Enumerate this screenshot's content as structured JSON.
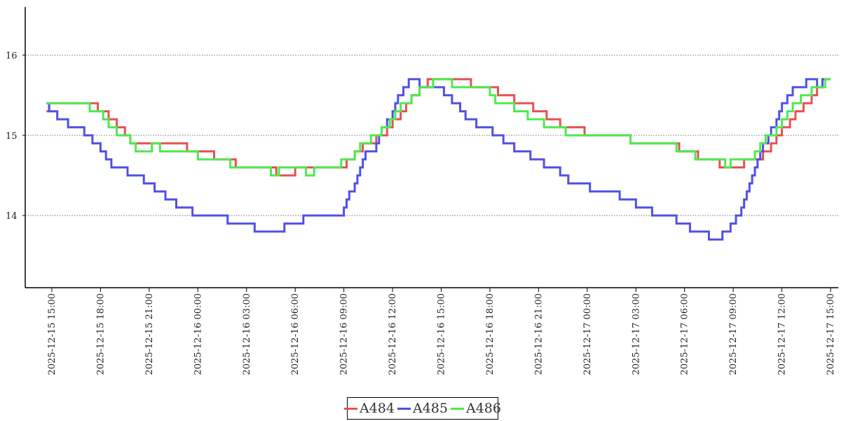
{
  "chart_data": {
    "type": "line",
    "step": true,
    "title": "",
    "xlabel": "",
    "ylabel": "",
    "ylim": [
      13.1,
      16.6
    ],
    "grid": "horizontal-dotted",
    "legend_position": "bottom-center",
    "y_ticks": [
      14,
      15,
      16
    ],
    "y_tick_labels": [
      "14",
      "15",
      "16"
    ],
    "x_ticks": [
      "2025-12-15 15:00",
      "2025-12-15 18:00",
      "2025-12-15 21:00",
      "2025-12-16 00:00",
      "2025-12-16 03:00",
      "2025-12-16 06:00",
      "2025-12-16 09:00",
      "2025-12-16 12:00",
      "2025-12-16 15:00",
      "2025-12-16 18:00",
      "2025-12-16 21:00",
      "2025-12-17 00:00",
      "2025-12-17 03:00",
      "2025-12-17 06:00",
      "2025-12-17 09:00",
      "2025-12-17 12:00",
      "2025-12-17 15:00"
    ],
    "series": [
      {
        "name": "A484",
        "color": "#e85050",
        "points": [
          [
            "2025-12-15 14:40",
            15.3
          ],
          [
            "2025-12-15 14:50",
            15.4
          ],
          [
            "2025-12-15 17:50",
            15.3
          ],
          [
            "2025-12-15 18:30",
            15.2
          ],
          [
            "2025-12-15 19:00",
            15.1
          ],
          [
            "2025-12-15 19:30",
            15.0
          ],
          [
            "2025-12-15 19:50",
            14.9
          ],
          [
            "2025-12-15 23:20",
            14.8
          ],
          [
            "2025-12-16 01:00",
            14.7
          ],
          [
            "2025-12-16 02:20",
            14.6
          ],
          [
            "2025-12-16 04:50",
            14.5
          ],
          [
            "2025-12-16 06:00",
            14.6
          ],
          [
            "2025-12-16 09:10",
            14.7
          ],
          [
            "2025-12-16 09:40",
            14.8
          ],
          [
            "2025-12-16 10:10",
            14.9
          ],
          [
            "2025-12-16 11:00",
            15.0
          ],
          [
            "2025-12-16 11:40",
            15.1
          ],
          [
            "2025-12-16 12:00",
            15.2
          ],
          [
            "2025-12-16 12:30",
            15.3
          ],
          [
            "2025-12-16 12:50",
            15.4
          ],
          [
            "2025-12-16 13:10",
            15.5
          ],
          [
            "2025-12-16 13:40",
            15.6
          ],
          [
            "2025-12-16 14:10",
            15.7
          ],
          [
            "2025-12-16 16:50",
            15.6
          ],
          [
            "2025-12-16 18:30",
            15.5
          ],
          [
            "2025-12-16 19:30",
            15.4
          ],
          [
            "2025-12-16 20:40",
            15.3
          ],
          [
            "2025-12-16 21:30",
            15.2
          ],
          [
            "2025-12-16 22:20",
            15.1
          ],
          [
            "2025-12-16 23:50",
            15.0
          ],
          [
            "2025-12-17 02:40",
            14.9
          ],
          [
            "2025-12-17 05:40",
            14.8
          ],
          [
            "2025-12-17 06:50",
            14.7
          ],
          [
            "2025-12-17 08:10",
            14.6
          ],
          [
            "2025-12-17 09:40",
            14.7
          ],
          [
            "2025-12-17 10:50",
            14.8
          ],
          [
            "2025-12-17 11:20",
            14.9
          ],
          [
            "2025-12-17 11:40",
            15.0
          ],
          [
            "2025-12-17 12:00",
            15.1
          ],
          [
            "2025-12-17 12:30",
            15.2
          ],
          [
            "2025-12-17 12:50",
            15.3
          ],
          [
            "2025-12-17 13:20",
            15.4
          ],
          [
            "2025-12-17 13:50",
            15.5
          ],
          [
            "2025-12-17 14:10",
            15.6
          ],
          [
            "2025-12-17 14:30",
            15.7
          ],
          [
            "2025-12-17 15:00",
            15.7
          ]
        ]
      },
      {
        "name": "A485",
        "color": "#5050e8",
        "points": [
          [
            "2025-12-15 14:40",
            15.4
          ],
          [
            "2025-12-15 14:50",
            15.3
          ],
          [
            "2025-12-15 15:20",
            15.2
          ],
          [
            "2025-12-15 16:00",
            15.1
          ],
          [
            "2025-12-15 17:00",
            15.0
          ],
          [
            "2025-12-15 17:30",
            14.9
          ],
          [
            "2025-12-15 18:00",
            14.8
          ],
          [
            "2025-12-15 18:20",
            14.7
          ],
          [
            "2025-12-15 18:40",
            14.6
          ],
          [
            "2025-12-15 19:40",
            14.5
          ],
          [
            "2025-12-15 20:40",
            14.4
          ],
          [
            "2025-12-15 21:20",
            14.3
          ],
          [
            "2025-12-15 22:00",
            14.2
          ],
          [
            "2025-12-15 22:40",
            14.1
          ],
          [
            "2025-12-15 23:40",
            14.0
          ],
          [
            "2025-12-16 01:50",
            13.9
          ],
          [
            "2025-12-16 03:30",
            13.8
          ],
          [
            "2025-12-16 05:20",
            13.9
          ],
          [
            "2025-12-16 06:30",
            14.0
          ],
          [
            "2025-12-16 09:00",
            14.1
          ],
          [
            "2025-12-16 09:10",
            14.2
          ],
          [
            "2025-12-16 09:20",
            14.3
          ],
          [
            "2025-12-16 09:40",
            14.4
          ],
          [
            "2025-12-16 09:50",
            14.5
          ],
          [
            "2025-12-16 10:00",
            14.6
          ],
          [
            "2025-12-16 10:10",
            14.7
          ],
          [
            "2025-12-16 10:20",
            14.8
          ],
          [
            "2025-12-16 11:00",
            14.9
          ],
          [
            "2025-12-16 11:10",
            15.0
          ],
          [
            "2025-12-16 11:20",
            15.1
          ],
          [
            "2025-12-16 11:40",
            15.2
          ],
          [
            "2025-12-16 12:00",
            15.3
          ],
          [
            "2025-12-16 12:10",
            15.4
          ],
          [
            "2025-12-16 12:20",
            15.5
          ],
          [
            "2025-12-16 12:40",
            15.6
          ],
          [
            "2025-12-16 13:00",
            15.7
          ],
          [
            "2025-12-16 13:40",
            15.6
          ],
          [
            "2025-12-16 15:10",
            15.5
          ],
          [
            "2025-12-16 15:40",
            15.4
          ],
          [
            "2025-12-16 16:10",
            15.3
          ],
          [
            "2025-12-16 16:30",
            15.2
          ],
          [
            "2025-12-16 17:10",
            15.1
          ],
          [
            "2025-12-16 18:10",
            15.0
          ],
          [
            "2025-12-16 18:50",
            14.9
          ],
          [
            "2025-12-16 19:30",
            14.8
          ],
          [
            "2025-12-16 20:30",
            14.7
          ],
          [
            "2025-12-16 21:20",
            14.6
          ],
          [
            "2025-12-16 22:20",
            14.5
          ],
          [
            "2025-12-16 22:50",
            14.4
          ],
          [
            "2025-12-17 00:10",
            14.3
          ],
          [
            "2025-12-17 02:00",
            14.2
          ],
          [
            "2025-12-17 03:00",
            14.1
          ],
          [
            "2025-12-17 04:00",
            14.0
          ],
          [
            "2025-12-17 05:30",
            13.9
          ],
          [
            "2025-12-17 06:20",
            13.8
          ],
          [
            "2025-12-17 07:30",
            13.7
          ],
          [
            "2025-12-17 08:20",
            13.8
          ],
          [
            "2025-12-17 08:50",
            13.9
          ],
          [
            "2025-12-17 09:10",
            14.0
          ],
          [
            "2025-12-17 09:30",
            14.1
          ],
          [
            "2025-12-17 09:40",
            14.2
          ],
          [
            "2025-12-17 09:50",
            14.3
          ],
          [
            "2025-12-17 10:00",
            14.4
          ],
          [
            "2025-12-17 10:10",
            14.5
          ],
          [
            "2025-12-17 10:20",
            14.6
          ],
          [
            "2025-12-17 10:30",
            14.7
          ],
          [
            "2025-12-17 10:40",
            14.8
          ],
          [
            "2025-12-17 10:50",
            14.9
          ],
          [
            "2025-12-17 11:10",
            15.0
          ],
          [
            "2025-12-17 11:20",
            15.1
          ],
          [
            "2025-12-17 11:40",
            15.2
          ],
          [
            "2025-12-17 11:50",
            15.3
          ],
          [
            "2025-12-17 12:00",
            15.4
          ],
          [
            "2025-12-17 12:20",
            15.5
          ],
          [
            "2025-12-17 12:40",
            15.6
          ],
          [
            "2025-12-17 13:30",
            15.7
          ],
          [
            "2025-12-17 14:10",
            15.6
          ],
          [
            "2025-12-17 14:30",
            15.7
          ],
          [
            "2025-12-17 15:00",
            15.7
          ]
        ]
      },
      {
        "name": "A486",
        "color": "#50e850",
        "points": [
          [
            "2025-12-15 14:40",
            15.4
          ],
          [
            "2025-12-15 17:20",
            15.3
          ],
          [
            "2025-12-15 18:10",
            15.2
          ],
          [
            "2025-12-15 18:30",
            15.1
          ],
          [
            "2025-12-15 19:00",
            15.0
          ],
          [
            "2025-12-15 19:50",
            14.9
          ],
          [
            "2025-12-15 20:10",
            14.8
          ],
          [
            "2025-12-15 21:10",
            14.9
          ],
          [
            "2025-12-15 21:40",
            14.8
          ],
          [
            "2025-12-16 00:00",
            14.7
          ],
          [
            "2025-12-16 02:00",
            14.6
          ],
          [
            "2025-12-16 04:30",
            14.5
          ],
          [
            "2025-12-16 05:00",
            14.6
          ],
          [
            "2025-12-16 06:40",
            14.5
          ],
          [
            "2025-12-16 07:10",
            14.6
          ],
          [
            "2025-12-16 08:50",
            14.7
          ],
          [
            "2025-12-16 09:40",
            14.8
          ],
          [
            "2025-12-16 10:00",
            14.9
          ],
          [
            "2025-12-16 10:40",
            15.0
          ],
          [
            "2025-12-16 11:20",
            15.1
          ],
          [
            "2025-12-16 11:50",
            15.2
          ],
          [
            "2025-12-16 12:10",
            15.3
          ],
          [
            "2025-12-16 12:30",
            15.4
          ],
          [
            "2025-12-16 13:10",
            15.5
          ],
          [
            "2025-12-16 13:40",
            15.6
          ],
          [
            "2025-12-16 14:30",
            15.7
          ],
          [
            "2025-12-16 15:40",
            15.6
          ],
          [
            "2025-12-16 18:00",
            15.5
          ],
          [
            "2025-12-16 18:20",
            15.4
          ],
          [
            "2025-12-16 19:30",
            15.3
          ],
          [
            "2025-12-16 20:20",
            15.2
          ],
          [
            "2025-12-16 21:20",
            15.1
          ],
          [
            "2025-12-16 22:40",
            15.0
          ],
          [
            "2025-12-17 02:40",
            14.9
          ],
          [
            "2025-12-17 05:30",
            14.8
          ],
          [
            "2025-12-17 06:40",
            14.7
          ],
          [
            "2025-12-17 08:30",
            14.6
          ],
          [
            "2025-12-17 08:50",
            14.7
          ],
          [
            "2025-12-17 09:40",
            14.7
          ],
          [
            "2025-12-17 10:20",
            14.8
          ],
          [
            "2025-12-17 10:40",
            14.9
          ],
          [
            "2025-12-17 11:00",
            15.0
          ],
          [
            "2025-12-17 11:40",
            15.1
          ],
          [
            "2025-12-17 12:00",
            15.2
          ],
          [
            "2025-12-17 12:20",
            15.3
          ],
          [
            "2025-12-17 12:40",
            15.4
          ],
          [
            "2025-12-17 13:10",
            15.5
          ],
          [
            "2025-12-17 13:50",
            15.6
          ],
          [
            "2025-12-17 14:40",
            15.7
          ],
          [
            "2025-12-17 15:00",
            15.7
          ]
        ]
      }
    ]
  }
}
